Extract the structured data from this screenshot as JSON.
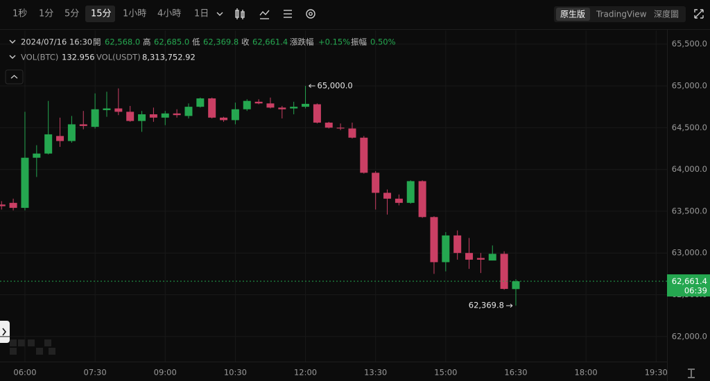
{
  "toolbar": {
    "intervals": [
      "1秒",
      "1分",
      "5分",
      "15分",
      "1小時",
      "4小時",
      "1日"
    ],
    "active": "15分",
    "views": [
      "原生版",
      "TradingView",
      "深度圖"
    ]
  },
  "chart_data": {
    "type": "candlestick",
    "info": {
      "time": "2024/07/16 16:30",
      "open_label": "開",
      "open": "62,568.0",
      "high_label": "高",
      "high": "62,685.0",
      "low_label": "低",
      "low": "62,369.8",
      "close_label": "收",
      "close": "62,661.4",
      "change_label": "漲跌幅",
      "change": "+0.15%",
      "amplitude_label": "振幅",
      "amplitude": "0.50%"
    },
    "volume": {
      "btc_label": "VOL(BTC)",
      "btc": "132.956",
      "usdt_label": "VOL(USDT)",
      "usdt": "8,313,752.92"
    },
    "x": [
      "05:30",
      "05:45",
      "06:00",
      "06:15",
      "06:30",
      "06:45",
      "07:00",
      "07:15",
      "07:30",
      "07:45",
      "08:00",
      "08:15",
      "08:30",
      "08:45",
      "09:00",
      "09:15",
      "09:30",
      "09:45",
      "10:00",
      "10:15",
      "10:30",
      "10:45",
      "11:00",
      "11:15",
      "11:30",
      "11:45",
      "12:00",
      "12:15",
      "12:30",
      "12:45",
      "13:00",
      "13:15",
      "13:30",
      "13:45",
      "14:00",
      "14:15",
      "14:30",
      "14:45",
      "15:00",
      "15:15",
      "15:30",
      "15:45",
      "16:00",
      "16:15",
      "16:30"
    ],
    "open": [
      63580,
      63600,
      63540,
      64140,
      64190,
      64400,
      64340,
      64540,
      64510,
      64710,
      64730,
      64690,
      64580,
      64660,
      64620,
      64670,
      64640,
      64750,
      64850,
      64620,
      64590,
      64720,
      64810,
      64790,
      64740,
      64730,
      64750,
      64780,
      64560,
      64500,
      64490,
      64380,
      63960,
      63720,
      63650,
      63600,
      63860,
      63430,
      62890,
      63210,
      63000,
      62940,
      62910,
      62990,
      62568.0
    ],
    "high": [
      63620,
      63650,
      64690,
      64290,
      64820,
      64620,
      64640,
      64700,
      64910,
      64930,
      64970,
      64760,
      64700,
      64740,
      64700,
      64720,
      64790,
      64860,
      64860,
      64630,
      64800,
      64840,
      64840,
      64860,
      64760,
      64810,
      65000,
      64790,
      64570,
      64550,
      64560,
      64400,
      63980,
      63760,
      63700,
      63870,
      63870,
      63440,
      63250,
      63270,
      63180,
      63000,
      63090,
      63020,
      62685.0
    ],
    "low": [
      63520,
      63510,
      63510,
      63910,
      64180,
      64270,
      64320,
      64480,
      64490,
      64630,
      64650,
      64570,
      64450,
      64570,
      64530,
      64620,
      64610,
      64740,
      64610,
      64570,
      64540,
      64700,
      64780,
      64730,
      64610,
      64660,
      64730,
      64550,
      64490,
      64470,
      64370,
      63950,
      63520,
      63460,
      63570,
      63590,
      63420,
      62750,
      62780,
      62920,
      62810,
      62760,
      62910,
      62560,
      62369.8
    ],
    "close": [
      63560,
      63540,
      64140,
      64190,
      64420,
      64340,
      64540,
      64520,
      64720,
      64730,
      64690,
      64580,
      64660,
      64620,
      64670,
      64650,
      64750,
      64850,
      64620,
      64590,
      64720,
      64820,
      64790,
      64740,
      64720,
      64750,
      64785,
      64560,
      64500,
      64490,
      64380,
      63960,
      63720,
      63650,
      63600,
      63860,
      63430,
      62890,
      63210,
      63000,
      62920,
      62920,
      62990,
      62570,
      62661.4
    ],
    "up_color": "#25a750",
    "down_color": "#ca3f64",
    "ylim": [
      61700,
      65663
    ],
    "yticks": [
      {
        "value": 62000,
        "label": "62,000.0"
      },
      {
        "value": 62500,
        "label": "62,500.0"
      },
      {
        "value": 63000,
        "label": "63,000.0"
      },
      {
        "value": 63500,
        "label": "63,500.0"
      },
      {
        "value": 64000,
        "label": "64,000.0"
      },
      {
        "value": 64500,
        "label": "64,500.0"
      },
      {
        "value": 65000,
        "label": "65,000.0"
      },
      {
        "value": 65500,
        "label": "65,500.0"
      }
    ],
    "xlim": [
      "05:28",
      "19:44"
    ],
    "xticks": [
      "06:00",
      "07:30",
      "09:00",
      "10:30",
      "12:00",
      "13:30",
      "15:00",
      "16:30",
      "18:00",
      "19:30"
    ],
    "grid": true,
    "annotations": [
      {
        "text": "65,000.0",
        "value": 65000,
        "x": "12:00",
        "side": "right"
      },
      {
        "text": "62,369.8",
        "value": 62369.8,
        "x": "16:30",
        "side": "left"
      }
    ],
    "last_price": {
      "value": 62661.4,
      "label": "62,661.4",
      "countdown": "06:39"
    }
  }
}
